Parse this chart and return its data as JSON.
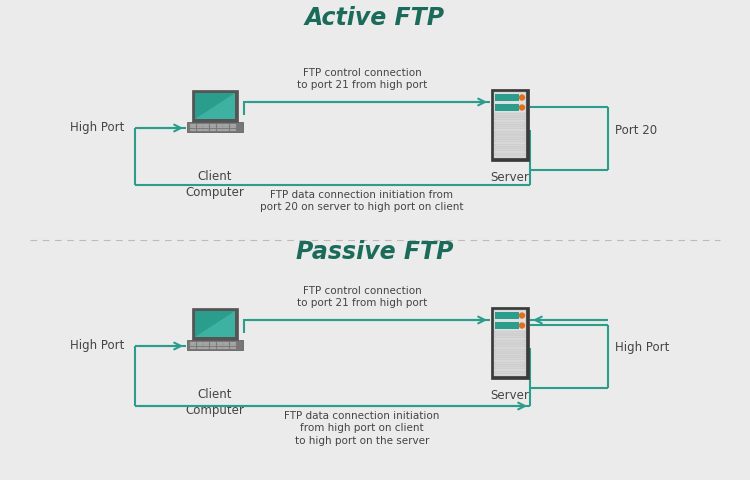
{
  "bg_color": "#ebebeb",
  "title_color": "#1a6b5a",
  "arrow_color": "#2a9d8d",
  "text_color": "#444444",
  "active_title": "Active FTP",
  "passive_title": "Passive FTP",
  "client_label": "Client\nComputer",
  "server_label": "Server",
  "high_port_label": "High Port",
  "port20_label": "Port 20",
  "high_port_label2": "High Port",
  "active_ctrl_text": "FTP control connection\nto port 21 from high port",
  "active_data_text": "FTP data connection initiation from\nport 20 on server to high port on client",
  "passive_ctrl_text": "FTP control connection\nto port 21 from high port",
  "passive_data_text": "FTP data connection initiation\nfrom high port on client\nto high port on the server",
  "divider_color": "#bbbbbb",
  "server_dark": "#3a3a3a",
  "server_mid": "#c8c8c8",
  "server_light": "#e0e0e0",
  "server_teal": "#2a9d8d",
  "server_orange": "#e07020",
  "laptop_dark": "#555555",
  "laptop_mid": "#777777",
  "laptop_screen": "#2a9d8d",
  "laptop_kb": "#888888"
}
